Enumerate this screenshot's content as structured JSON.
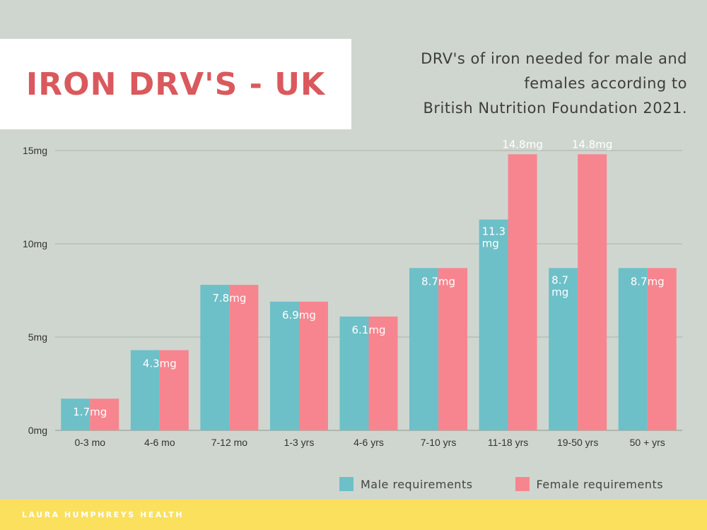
{
  "header": {
    "title": "IRON DRV'S - UK",
    "subtitle_lines": [
      "DRV's of iron needed for male and",
      "females according to",
      "British Nutrition Foundation 2021."
    ]
  },
  "chart_data": {
    "type": "bar",
    "categories": [
      "0-3 mo",
      "4-6 mo",
      "7-12 mo",
      "1-3 yrs",
      "4-6 yrs",
      "7-10 yrs",
      "11-18 yrs",
      "19-50 yrs",
      "50 + yrs"
    ],
    "series": [
      {
        "name": "Male requirements",
        "values": [
          1.7,
          4.3,
          7.8,
          6.9,
          6.1,
          8.7,
          11.3,
          8.7,
          8.7
        ],
        "color": "#6dc0c8"
      },
      {
        "name": "Female requirements",
        "values": [
          1.7,
          4.3,
          7.8,
          6.9,
          6.1,
          8.7,
          14.8,
          14.8,
          8.7
        ],
        "color": "#f7858f"
      }
    ],
    "data_labels": [
      {
        "category_index": 0,
        "lines": [
          "1.7mg"
        ],
        "placement": "inside-pair"
      },
      {
        "category_index": 1,
        "lines": [
          "4.3mg"
        ],
        "placement": "inside-pair"
      },
      {
        "category_index": 2,
        "lines": [
          "7.8mg"
        ],
        "placement": "inside-pair"
      },
      {
        "category_index": 3,
        "lines": [
          "6.9mg"
        ],
        "placement": "inside-pair"
      },
      {
        "category_index": 4,
        "lines": [
          "6.1mg"
        ],
        "placement": "inside-pair"
      },
      {
        "category_index": 5,
        "lines": [
          "8.7mg"
        ],
        "placement": "inside-pair"
      },
      {
        "category_index": 6,
        "series_index": 0,
        "lines": [
          "11.3",
          "mg"
        ],
        "placement": "inside-male"
      },
      {
        "category_index": 6,
        "series_index": 1,
        "lines": [
          "14.8mg"
        ],
        "placement": "above-female"
      },
      {
        "category_index": 7,
        "series_index": 0,
        "lines": [
          "8.7",
          "mg"
        ],
        "placement": "inside-male"
      },
      {
        "category_index": 7,
        "series_index": 1,
        "lines": [
          "14.8mg"
        ],
        "placement": "above-female"
      },
      {
        "category_index": 8,
        "lines": [
          "8.7mg"
        ],
        "placement": "inside-pair"
      }
    ],
    "y_ticks": [
      {
        "value": 0,
        "label": "0mg"
      },
      {
        "value": 5,
        "label": "5mg"
      },
      {
        "value": 10,
        "label": "10mg"
      },
      {
        "value": 15,
        "label": "15mg"
      }
    ],
    "ylim": [
      0,
      15
    ],
    "grid": true,
    "legend_position": "bottom-right"
  },
  "colors": {
    "background": "#cfd6cf",
    "title": "#d9595d",
    "male": "#6dc0c8",
    "female": "#f7858f",
    "footer": "#fbe05e"
  },
  "footer": {
    "text": "LAURA HUMPHREYS HEALTH"
  }
}
